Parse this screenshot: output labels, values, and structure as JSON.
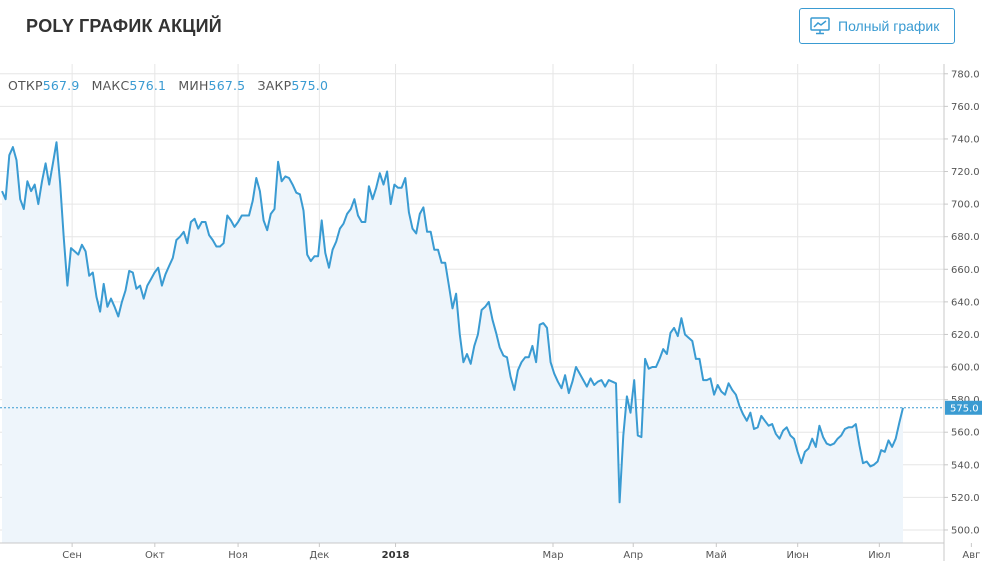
{
  "header": {
    "title": "POLY ГРАФИК АКЦИЙ",
    "full_chart_button": "Полный график",
    "full_chart_icon": "line-chart-monitor-icon"
  },
  "ohlc": {
    "open_label": "ОТКР",
    "open_value": "567.9",
    "high_label": "МАКС",
    "high_value": "576.1",
    "low_label": "МИН",
    "low_value": "567.5",
    "close_label": "ЗАКР",
    "close_value": "575.0"
  },
  "colors": {
    "line": "#3a9bd2",
    "fill": "#eef5fb",
    "grid": "#e6e6e6",
    "current_label_bg": "#3a9bd2"
  },
  "chart_data": {
    "type": "area",
    "y_ticks": [
      "500.0",
      "520.0",
      "540.0",
      "560.0",
      "580.0",
      "600.0",
      "620.0",
      "640.0",
      "660.0",
      "680.0",
      "700.0",
      "720.0",
      "740.0",
      "760.0",
      "780.0"
    ],
    "ylim": [
      492,
      786
    ],
    "x_ticks": [
      {
        "label": "Сен",
        "pos": 0.0764
      },
      {
        "label": "Окт",
        "pos": 0.164
      },
      {
        "label": "Ноя",
        "pos": 0.2522
      },
      {
        "label": "Дек",
        "pos": 0.3383
      },
      {
        "label": "2018",
        "pos": 0.419,
        "bold": true
      },
      {
        "label": "Мар",
        "pos": 0.5858
      },
      {
        "label": "Апр",
        "pos": 0.6708
      },
      {
        "label": "Май",
        "pos": 0.7588
      },
      {
        "label": "Июн",
        "pos": 0.845
      },
      {
        "label": "Июл",
        "pos": 0.9315
      },
      {
        "label": "Авг",
        "pos": 1.029
      }
    ],
    "x_range": [
      0,
      1
    ],
    "current_value": "575.0",
    "current": 575.0,
    "values": [
      708,
      703,
      730,
      735,
      727,
      703,
      697,
      714,
      708,
      712,
      700,
      714,
      725,
      712,
      725,
      738,
      713,
      679,
      650,
      673,
      671,
      669,
      675,
      671,
      656,
      658,
      643,
      634,
      651,
      637,
      642,
      637,
      631,
      640,
      647,
      659,
      658,
      648,
      650,
      642,
      650,
      654,
      658,
      661,
      650,
      657,
      662,
      667,
      678,
      680,
      683,
      676,
      689,
      691,
      685,
      689,
      689,
      681,
      678,
      674,
      674,
      676,
      693,
      690,
      686,
      689,
      693,
      693,
      693,
      702,
      716,
      708,
      690,
      684,
      694,
      697,
      726,
      714,
      717,
      716,
      712,
      707,
      706,
      696,
      669,
      665,
      668,
      668,
      690,
      670,
      661,
      672,
      677,
      685,
      688,
      694,
      697,
      703,
      693,
      689,
      689,
      711,
      703,
      710,
      719,
      712,
      720,
      700,
      712,
      710,
      710,
      716,
      695,
      685,
      682,
      694,
      698,
      683,
      683,
      672,
      672,
      664,
      664,
      650,
      636,
      645,
      620,
      603,
      608,
      602,
      613,
      620,
      635,
      637,
      640,
      629,
      621,
      612,
      607,
      606,
      594,
      586,
      598,
      603,
      606,
      606,
      613,
      603,
      626,
      627,
      624,
      603,
      596,
      591,
      587,
      595,
      584,
      591,
      600,
      596,
      592,
      588,
      593,
      589,
      591,
      592,
      588,
      592,
      591,
      590,
      517,
      558,
      582,
      572,
      592,
      558,
      557,
      605,
      599,
      600,
      600,
      605,
      611,
      608,
      621,
      624,
      619,
      630,
      620,
      618,
      616,
      605,
      605,
      592,
      592,
      593,
      583,
      589,
      585,
      583,
      590,
      586,
      583,
      576,
      571,
      567,
      572,
      562,
      563,
      570,
      567,
      564,
      565,
      559,
      556,
      561,
      563,
      558,
      556,
      548,
      541,
      548,
      550,
      556,
      551,
      564,
      557,
      553,
      552,
      553,
      556,
      558,
      562,
      563,
      563,
      565,
      552,
      541,
      542,
      539,
      540,
      542,
      549,
      548,
      555,
      551,
      556,
      566,
      575
    ]
  }
}
